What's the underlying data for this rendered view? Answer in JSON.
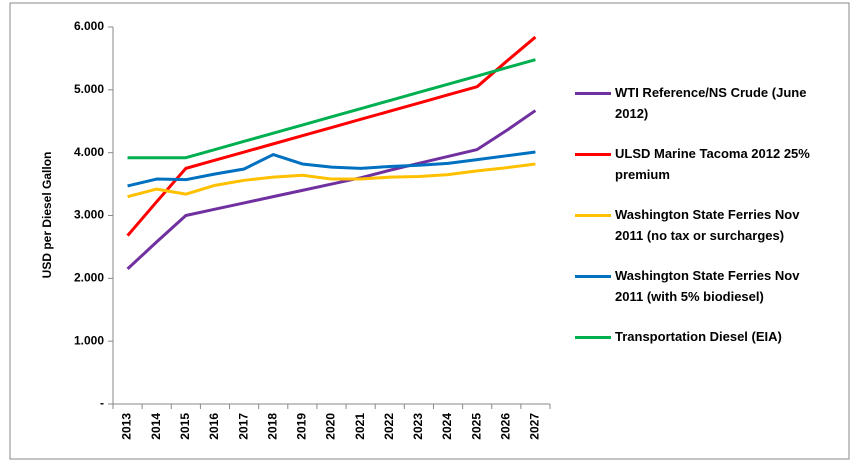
{
  "chart_data": {
    "type": "line",
    "y_label": "USD per Diesel Gallon",
    "categories": [
      "2013",
      "2014",
      "2015",
      "2016",
      "2017",
      "2018",
      "2019",
      "2020",
      "2021",
      "2022",
      "2023",
      "2024",
      "2025",
      "2026",
      "2027"
    ],
    "series": [
      {
        "name": "WTI Reference/NS Crude (June 2012)",
        "color": "#7030a0",
        "values": [
          2.15,
          2.58,
          3.0,
          3.1,
          3.2,
          3.3,
          3.4,
          3.5,
          3.6,
          3.72,
          3.83,
          3.94,
          4.05,
          4.35,
          4.67
        ]
      },
      {
        "name": "ULSD Marine Tacoma 2012 25% premium",
        "color": "#ff0000",
        "values": [
          2.68,
          3.22,
          3.75,
          3.88,
          4.01,
          4.14,
          4.27,
          4.4,
          4.53,
          4.66,
          4.79,
          4.92,
          5.05,
          5.45,
          5.84
        ]
      },
      {
        "name": "Washington State Ferries Nov 2011 (no tax or surcharges)",
        "color": "#ffc000",
        "values": [
          3.3,
          3.42,
          3.34,
          3.48,
          3.56,
          3.61,
          3.64,
          3.58,
          3.58,
          3.61,
          3.62,
          3.65,
          3.71,
          3.76,
          3.82
        ]
      },
      {
        "name": "Washington State Ferries Nov 2011 (with 5% biodiesel)",
        "color": "#0070c0",
        "values": [
          3.47,
          3.58,
          3.57,
          3.66,
          3.74,
          3.97,
          3.82,
          3.77,
          3.75,
          3.78,
          3.8,
          3.83,
          3.89,
          3.95,
          4.01
        ]
      },
      {
        "name": "Transportation Diesel (EIA)",
        "color": "#00b050",
        "values": [
          3.92,
          3.92,
          3.92,
          4.05,
          4.18,
          4.31,
          4.44,
          4.57,
          4.7,
          4.83,
          4.96,
          5.09,
          5.22,
          5.35,
          5.48
        ]
      }
    ],
    "ylim": [
      0,
      6
    ],
    "yticks": [
      {
        "value": 0,
        "label": "-"
      },
      {
        "value": 1,
        "label": "1.000"
      },
      {
        "value": 2,
        "label": "2.000"
      },
      {
        "value": 3,
        "label": "3.000"
      },
      {
        "value": 4,
        "label": "4.000"
      },
      {
        "value": 5,
        "label": "5.000"
      },
      {
        "value": 6,
        "label": "6.000"
      }
    ],
    "grid": false,
    "legend": "right"
  }
}
